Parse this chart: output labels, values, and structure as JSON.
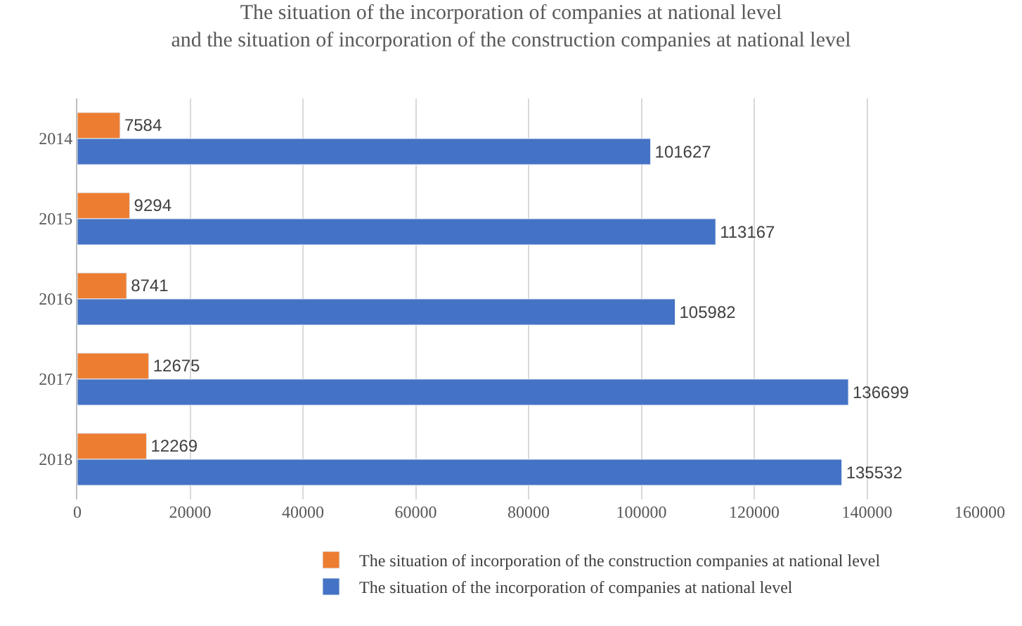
{
  "chart_data": {
    "type": "bar",
    "orientation": "horizontal",
    "title": "The situation of the incorporation of companies at national level and the situation of incorporation of the construction companies at national level",
    "categories": [
      "2014",
      "2015",
      "2016",
      "2017",
      "2018"
    ],
    "series": [
      {
        "name": "The situation of incorporation of the construction companies at national level",
        "color": "#ed7d31",
        "values": [
          7584,
          9294,
          8741,
          12675,
          12269
        ]
      },
      {
        "name": "The situation of the incorporation of companies at national level",
        "color": "#4472c4",
        "values": [
          101627,
          113167,
          105982,
          136699,
          135532
        ]
      }
    ],
    "xlim": [
      0,
      160000
    ],
    "xticks": [
      0,
      20000,
      40000,
      60000,
      80000,
      100000,
      120000,
      140000,
      160000
    ],
    "grid": "x",
    "legend": "bottom",
    "data_labels": true
  }
}
